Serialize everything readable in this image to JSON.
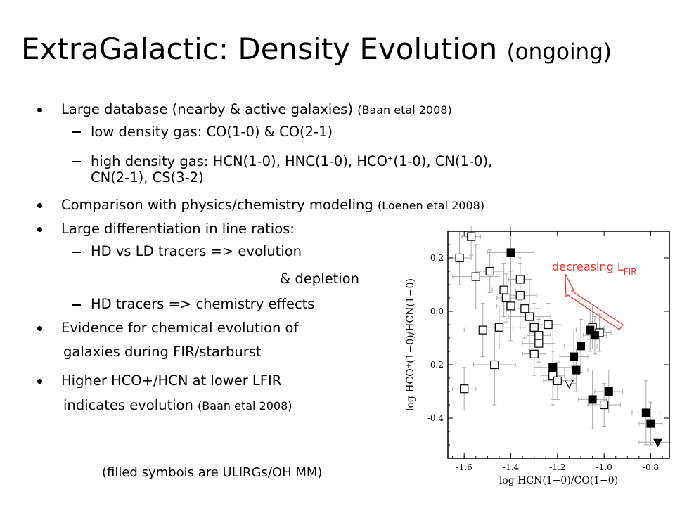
{
  "slide": {
    "title_main": "ExtraGalactic: Density Evolution",
    "title_sub": "(ongoing)",
    "b1": "Large database (nearby & active galaxies)",
    "b1_ref": "(Baan etal 2008)",
    "b1a": "low density gas: CO(1-0) & CO(2-1)",
    "b1b_pre": "high density gas: HCN(1-0), HNC(1-0), HCO",
    "b1b_sup": "+",
    "b1b_post": "(1-0), CN(1-0),",
    "b1b_cont": "CN(2-1), CS(3-2)",
    "b2": "Comparison with physics/chemistry modeling",
    "b2_ref": "(Loenen etal 2008)",
    "b3": "Large differentiation in line ratios:",
    "b3a": "HD vs LD tracers => evolution",
    "b3a_cont": "& depletion",
    "b3b": "HD tracers => chemistry effects",
    "b4": "Evidence for chemical evolution of",
    "b4_cont": "galaxies during FIR/starburst",
    "b5": "Higher HCO+/HCN at lower LFIR",
    "b5_cont": "indicates evolution",
    "b5_ref": "(Baan etal 2008)",
    "caption": "(filled symbols are ULIRGs/OH MM)"
  },
  "chart_data": {
    "type": "scatter",
    "xlabel": "log HCN(1−0)/CO(1−0)",
    "ylabel": "log HCO⁺(1−0)/HCN(1−0)",
    "xlim": [
      -1.67,
      -0.72
    ],
    "ylim": [
      -0.55,
      0.3
    ],
    "x_ticks": [
      -1.6,
      -1.4,
      -1.2,
      -1.0,
      -0.8
    ],
    "x_tick_labels": [
      "-1.6",
      "-1.4",
      "-1.2",
      "-1.0",
      "-0.8"
    ],
    "y_ticks": [
      -0.4,
      -0.2,
      0.0,
      0.2
    ],
    "y_tick_labels": [
      "-0.4",
      "-0.2",
      "0.0",
      "0.2"
    ],
    "annotation": "decreasing L",
    "annotation_sub": "FIR",
    "colors": {
      "annotation": "#e8332d",
      "errorbar": "#aaaaaa",
      "marker": "#000000"
    },
    "series": [
      {
        "marker": "open-square",
        "points": [
          {
            "x": -1.62,
            "y": 0.2,
            "xe": 0.05,
            "ye": 0.1
          },
          {
            "x": -1.57,
            "y": 0.28,
            "xe": 0.04,
            "ye": 0.07
          },
          {
            "x": -1.55,
            "y": 0.13,
            "xe": 0.1,
            "ye": 0.12
          },
          {
            "x": -1.49,
            "y": 0.15,
            "xe": 0.06,
            "ye": 0.08
          },
          {
            "x": -1.43,
            "y": 0.08,
            "xe": 0.05,
            "ye": 0.1
          },
          {
            "x": -1.42,
            "y": 0.05,
            "xe": 0.04,
            "ye": 0.09
          },
          {
            "x": -1.36,
            "y": 0.06,
            "xe": 0.07,
            "ye": 0.12
          },
          {
            "x": -1.4,
            "y": 0.02,
            "xe": 0.06,
            "ye": 0.13
          },
          {
            "x": -1.36,
            "y": 0.12,
            "xe": 0.05,
            "ye": 0.08
          },
          {
            "x": -1.34,
            "y": 0.01,
            "xe": 0.07,
            "ye": 0.11
          },
          {
            "x": -1.52,
            "y": -0.07,
            "xe": 0.08,
            "ye": 0.1
          },
          {
            "x": -1.45,
            "y": -0.06,
            "xe": 0.06,
            "ye": 0.08
          },
          {
            "x": -1.32,
            "y": -0.02,
            "xe": 0.09,
            "ye": 0.14
          },
          {
            "x": -1.3,
            "y": -0.06,
            "xe": 0.06,
            "ye": 0.09
          },
          {
            "x": -1.28,
            "y": -0.09,
            "xe": 0.05,
            "ye": 0.1
          },
          {
            "x": -1.24,
            "y": -0.05,
            "xe": 0.06,
            "ye": 0.08
          },
          {
            "x": -1.3,
            "y": -0.16,
            "xe": 0.05,
            "ye": 0.08
          },
          {
            "x": -1.28,
            "y": -0.12,
            "xe": 0.07,
            "ye": 0.09
          },
          {
            "x": -1.47,
            "y": -0.2,
            "xe": 0.09,
            "ye": 0.15
          },
          {
            "x": -1.6,
            "y": -0.29,
            "xe": 0.05,
            "ye": 0.08
          },
          {
            "x": -1.22,
            "y": -0.24,
            "xe": 0.05,
            "ye": 0.09
          },
          {
            "x": -1.2,
            "y": -0.26,
            "xe": 0.06,
            "ye": 0.07
          },
          {
            "x": -1.05,
            "y": -0.06,
            "xe": 0.05,
            "ye": 0.08
          },
          {
            "x": -1.02,
            "y": -0.08,
            "xe": 0.05,
            "ye": 0.07
          },
          {
            "x": -1.0,
            "y": -0.35,
            "xe": 0.07,
            "ye": 0.08
          }
        ]
      },
      {
        "marker": "filled-square",
        "points": [
          {
            "x": -1.4,
            "y": 0.22,
            "xe": 0.1,
            "ye": 0.1
          },
          {
            "x": -1.06,
            "y": -0.07,
            "xe": 0.06,
            "ye": 0.08
          },
          {
            "x": -1.04,
            "y": -0.09,
            "xe": 0.05,
            "ye": 0.07
          },
          {
            "x": -1.1,
            "y": -0.13,
            "xe": 0.07,
            "ye": 0.1
          },
          {
            "x": -1.13,
            "y": -0.17,
            "xe": 0.06,
            "ye": 0.1
          },
          {
            "x": -1.12,
            "y": -0.22,
            "xe": 0.05,
            "ye": 0.08
          },
          {
            "x": -1.22,
            "y": -0.21,
            "xe": 0.08,
            "ye": 0.14
          },
          {
            "x": -1.05,
            "y": -0.33,
            "xe": 0.06,
            "ye": 0.11
          },
          {
            "x": -0.98,
            "y": -0.3,
            "xe": 0.06,
            "ye": 0.08
          },
          {
            "x": -0.82,
            "y": -0.38,
            "xe": 0.06,
            "ye": 0.12
          },
          {
            "x": -0.8,
            "y": -0.42,
            "xe": 0.05,
            "ye": 0.08
          }
        ]
      },
      {
        "marker": "open-triangle-down",
        "points": [
          {
            "x": -1.15,
            "y": -0.27,
            "xe": 0,
            "ye": 0
          }
        ]
      },
      {
        "marker": "filled-triangle-down",
        "points": [
          {
            "x": -0.77,
            "y": -0.49,
            "xe": 0.08,
            "ye": 0
          }
        ]
      }
    ]
  }
}
